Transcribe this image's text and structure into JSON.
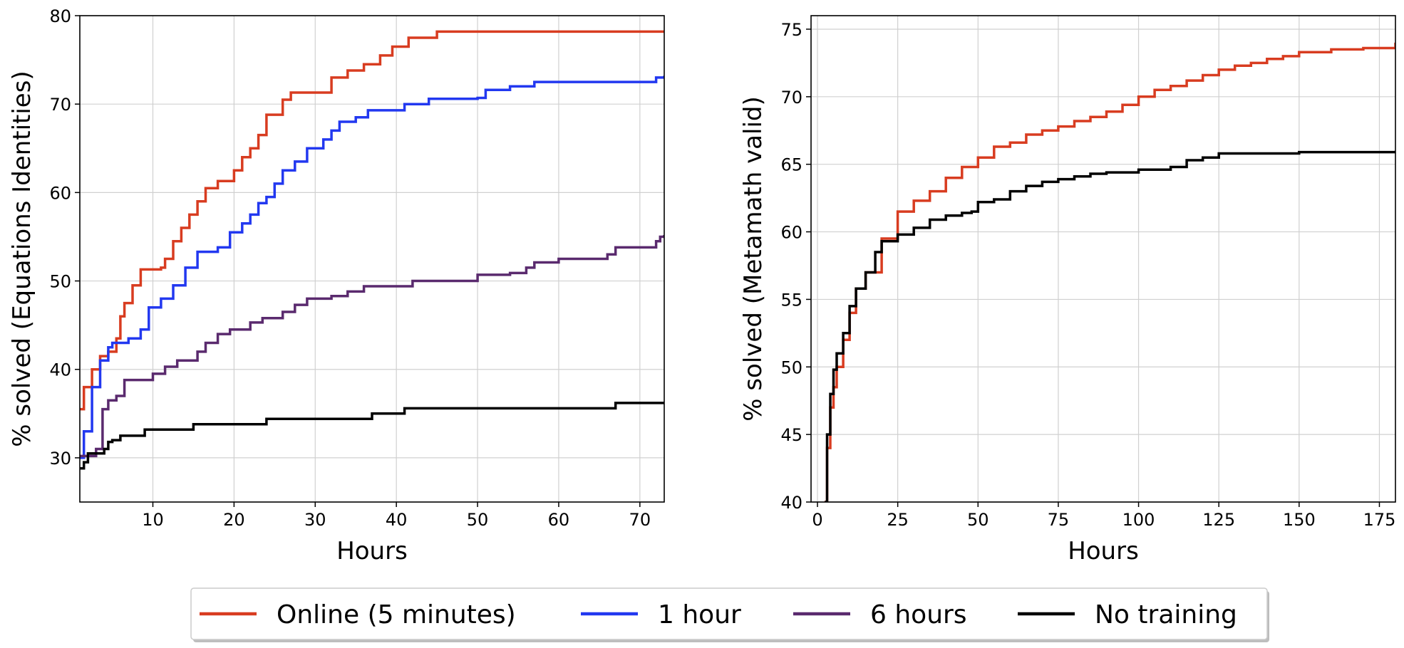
{
  "chart_data": [
    {
      "type": "line",
      "xlabel": "Hours",
      "ylabel": "% solved (Equations Identities)",
      "xlim": [
        1,
        73
      ],
      "ylim": [
        25,
        80
      ],
      "xticks": [
        10,
        20,
        30,
        40,
        50,
        60,
        70
      ],
      "yticks": [
        30,
        40,
        50,
        60,
        70,
        80
      ],
      "grid": true,
      "series": [
        {
          "key": "online",
          "points": [
            [
              1,
              35.5
            ],
            [
              1.5,
              38
            ],
            [
              2.5,
              40
            ],
            [
              3.5,
              41.5
            ],
            [
              4.5,
              42
            ],
            [
              5.5,
              43.5
            ],
            [
              6,
              46
            ],
            [
              6.5,
              47.5
            ],
            [
              7.5,
              49.5
            ],
            [
              8.5,
              51.3
            ],
            [
              11,
              51.5
            ],
            [
              11.5,
              52.5
            ],
            [
              12.5,
              54.5
            ],
            [
              13.5,
              56
            ],
            [
              14.5,
              57.5
            ],
            [
              15.5,
              59
            ],
            [
              16.5,
              60.5
            ],
            [
              18,
              61.3
            ],
            [
              20,
              62.5
            ],
            [
              21,
              64
            ],
            [
              22,
              65
            ],
            [
              23,
              66.5
            ],
            [
              24,
              68.8
            ],
            [
              26,
              70.5
            ],
            [
              27,
              71.3
            ],
            [
              31,
              71.3
            ],
            [
              32,
              73
            ],
            [
              34,
              73.8
            ],
            [
              36,
              74.5
            ],
            [
              38,
              75.5
            ],
            [
              39.5,
              76.5
            ],
            [
              41.5,
              77.5
            ],
            [
              45,
              78.2
            ],
            [
              73,
              78.2
            ]
          ]
        },
        {
          "key": "one_hour",
          "points": [
            [
              1,
              30
            ],
            [
              1.5,
              33
            ],
            [
              2.5,
              38
            ],
            [
              3.5,
              41
            ],
            [
              4.5,
              42.5
            ],
            [
              5,
              43
            ],
            [
              7,
              43.5
            ],
            [
              8.5,
              44.5
            ],
            [
              9.5,
              47
            ],
            [
              11,
              48
            ],
            [
              12.5,
              49.5
            ],
            [
              14,
              51.5
            ],
            [
              15.5,
              53.3
            ],
            [
              18,
              53.8
            ],
            [
              19.5,
              55.5
            ],
            [
              21,
              56.5
            ],
            [
              22,
              57.5
            ],
            [
              23,
              58.8
            ],
            [
              24,
              59.5
            ],
            [
              25,
              61
            ],
            [
              26,
              62.5
            ],
            [
              27.5,
              63.5
            ],
            [
              29,
              65
            ],
            [
              31,
              66
            ],
            [
              32,
              67
            ],
            [
              33,
              68
            ],
            [
              35,
              68.5
            ],
            [
              36.5,
              69.3
            ],
            [
              41,
              70
            ],
            [
              44,
              70.6
            ],
            [
              50,
              70.7
            ],
            [
              51,
              71.6
            ],
            [
              54,
              72
            ],
            [
              57,
              72.5
            ],
            [
              72,
              73
            ],
            [
              73,
              73.2
            ]
          ]
        },
        {
          "key": "six_hours",
          "points": [
            [
              1,
              30.2
            ],
            [
              3,
              31
            ],
            [
              3.8,
              35.5
            ],
            [
              4.5,
              36.5
            ],
            [
              5.5,
              37
            ],
            [
              6.5,
              38.8
            ],
            [
              10,
              39.5
            ],
            [
              11.5,
              40.3
            ],
            [
              13,
              41
            ],
            [
              15.5,
              42
            ],
            [
              16.5,
              43
            ],
            [
              18,
              44
            ],
            [
              19.5,
              44.5
            ],
            [
              22,
              45.3
            ],
            [
              23.5,
              45.8
            ],
            [
              26,
              46.5
            ],
            [
              27.5,
              47.3
            ],
            [
              29,
              48
            ],
            [
              32,
              48.3
            ],
            [
              34,
              48.8
            ],
            [
              36,
              49.4
            ],
            [
              42,
              50
            ],
            [
              50,
              50.7
            ],
            [
              54,
              50.9
            ],
            [
              56,
              51.5
            ],
            [
              57,
              52.1
            ],
            [
              60,
              52.5
            ],
            [
              66,
              53
            ],
            [
              67,
              53.8
            ],
            [
              72,
              54.5
            ],
            [
              72.5,
              55
            ],
            [
              73,
              55.2
            ]
          ]
        },
        {
          "key": "no_training",
          "points": [
            [
              1,
              28.8
            ],
            [
              1.5,
              29.5
            ],
            [
              2,
              30.5
            ],
            [
              4,
              31
            ],
            [
              4.5,
              31.8
            ],
            [
              5,
              32
            ],
            [
              6,
              32.5
            ],
            [
              9,
              33.2
            ],
            [
              15,
              33.8
            ],
            [
              24,
              34.4
            ],
            [
              37,
              35
            ],
            [
              41,
              35.6
            ],
            [
              67,
              36.2
            ],
            [
              73,
              36.3
            ]
          ]
        }
      ]
    },
    {
      "type": "line",
      "xlabel": "Hours",
      "ylabel": "% solved (Metamath valid)",
      "xlim": [
        -2,
        180
      ],
      "ylim": [
        40,
        76
      ],
      "xticks": [
        0,
        25,
        50,
        75,
        100,
        125,
        150,
        175
      ],
      "yticks": [
        40,
        45,
        50,
        55,
        60,
        65,
        70,
        75
      ],
      "grid": true,
      "series": [
        {
          "key": "online",
          "points": [
            [
              2.2,
              40
            ],
            [
              3,
              44
            ],
            [
              4,
              47
            ],
            [
              5,
              48.5
            ],
            [
              6,
              50
            ],
            [
              8,
              52
            ],
            [
              10,
              54
            ],
            [
              12,
              55.8
            ],
            [
              15,
              57
            ],
            [
              20,
              59.5
            ],
            [
              25,
              61.5
            ],
            [
              30,
              62.3
            ],
            [
              35,
              63
            ],
            [
              40,
              64
            ],
            [
              45,
              64.8
            ],
            [
              50,
              65.5
            ],
            [
              55,
              66.3
            ],
            [
              60,
              66.6
            ],
            [
              65,
              67.2
            ],
            [
              70,
              67.5
            ],
            [
              75,
              67.8
            ],
            [
              80,
              68.2
            ],
            [
              85,
              68.5
            ],
            [
              90,
              68.9
            ],
            [
              95,
              69.4
            ],
            [
              100,
              70
            ],
            [
              105,
              70.5
            ],
            [
              110,
              70.8
            ],
            [
              115,
              71.2
            ],
            [
              120,
              71.6
            ],
            [
              125,
              72
            ],
            [
              130,
              72.3
            ],
            [
              135,
              72.5
            ],
            [
              140,
              72.8
            ],
            [
              145,
              73
            ],
            [
              150,
              73.3
            ],
            [
              160,
              73.5
            ],
            [
              170,
              73.6
            ],
            [
              180,
              74
            ]
          ]
        },
        {
          "key": "no_training",
          "points": [
            [
              2.3,
              40
            ],
            [
              3,
              45
            ],
            [
              4,
              48
            ],
            [
              5,
              49.8
            ],
            [
              6,
              51
            ],
            [
              8,
              52.5
            ],
            [
              10,
              54.5
            ],
            [
              12,
              55.8
            ],
            [
              15,
              57
            ],
            [
              18,
              58.5
            ],
            [
              20,
              59.3
            ],
            [
              25,
              59.8
            ],
            [
              30,
              60.3
            ],
            [
              35,
              60.9
            ],
            [
              40,
              61.2
            ],
            [
              45,
              61.4
            ],
            [
              48,
              61.5
            ],
            [
              50,
              62.2
            ],
            [
              55,
              62.4
            ],
            [
              60,
              63
            ],
            [
              65,
              63.4
            ],
            [
              70,
              63.7
            ],
            [
              75,
              63.9
            ],
            [
              80,
              64.1
            ],
            [
              85,
              64.3
            ],
            [
              90,
              64.4
            ],
            [
              100,
              64.6
            ],
            [
              110,
              64.8
            ],
            [
              115,
              65.3
            ],
            [
              120,
              65.5
            ],
            [
              125,
              65.8
            ],
            [
              135,
              65.8
            ],
            [
              150,
              65.9
            ],
            [
              180,
              66
            ]
          ]
        }
      ]
    }
  ],
  "legend": {
    "placement": "bottom-center",
    "items": [
      {
        "key": "online",
        "label": "Online (5 minutes)",
        "color": "#d83c20"
      },
      {
        "key": "one_hour",
        "label": "1 hour",
        "color": "#2238f0"
      },
      {
        "key": "six_hours",
        "label": "6 hours",
        "color": "#5a2a6e"
      },
      {
        "key": "no_training",
        "label": "No training",
        "color": "#000000"
      }
    ]
  }
}
